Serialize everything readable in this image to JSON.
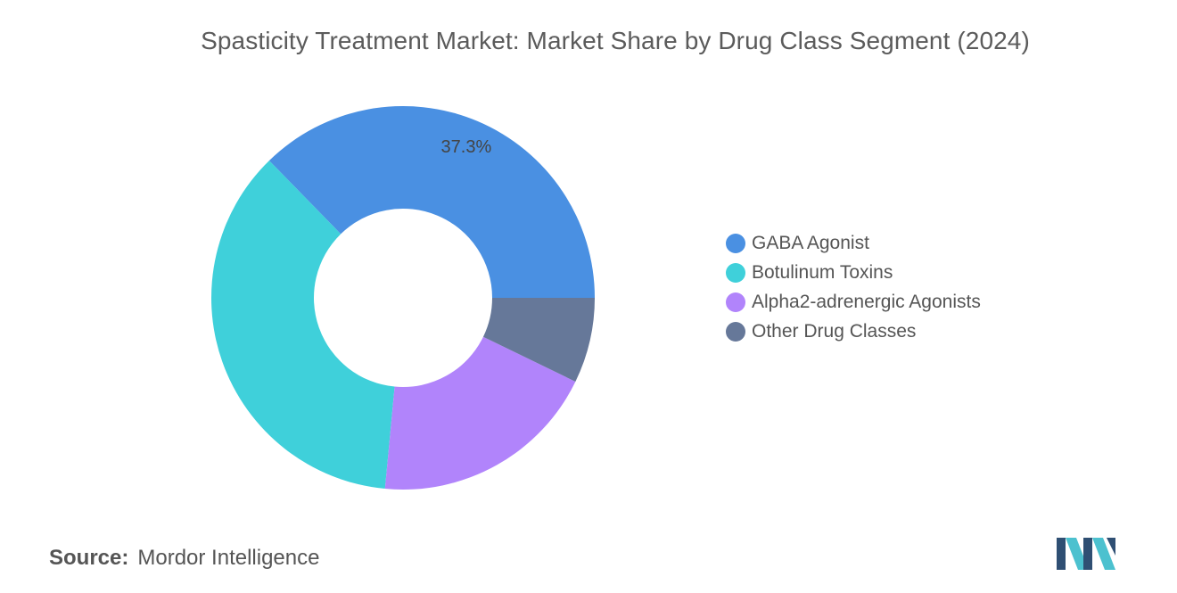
{
  "chart_data": {
    "type": "pie",
    "title": "Spasticity Treatment Market: Market Share by Drug Class Segment (2024)",
    "donut": true,
    "categories": [
      "GABA Agonist",
      "Botulinum Toxins",
      "Alpha2-adrenergic Agonists",
      "Other Drug Classes"
    ],
    "values": [
      37.3,
      36.2,
      19.3,
      7.2
    ],
    "colors": [
      "#4a90e2",
      "#3fd0da",
      "#b184fb",
      "#667899"
    ],
    "data_labels": [
      "37.3%",
      "",
      "",
      ""
    ],
    "legend_position": "right"
  },
  "source": {
    "label": "Source:",
    "value": "Mordor Intelligence"
  },
  "logo": {
    "icon": "mordor-intelligence-logo-icon",
    "colors": [
      "#2f4f73",
      "#4cc1cf"
    ]
  }
}
